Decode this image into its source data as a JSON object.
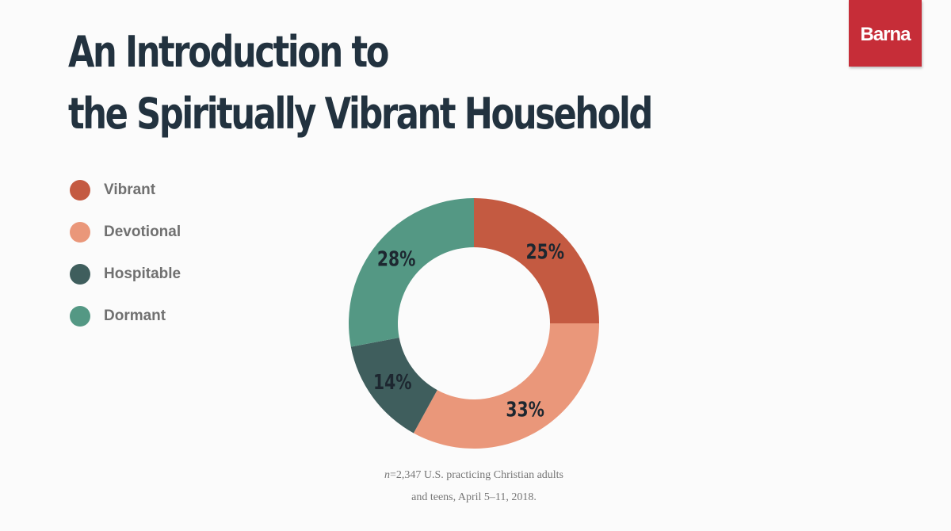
{
  "slide": {
    "title_line1": "An Introduction to",
    "title_line2": "the Spiritually Vibrant Household",
    "brand": "Barna",
    "footnote_n": "n",
    "footnote_line1": "=2,347 U.S. practicing Christian adults",
    "footnote_line2": "and teens, April 5–11, 2018."
  },
  "chart_data": {
    "type": "pie",
    "title": "",
    "donut": true,
    "legend_position": "left",
    "categories": [
      "Vibrant",
      "Devotional",
      "Hospitable",
      "Dormant"
    ],
    "values": [
      25,
      33,
      14,
      28
    ],
    "value_labels": [
      "25%",
      "33%",
      "14%",
      "28%"
    ],
    "colors": [
      "#c45a41",
      "#ea977a",
      "#3f5e5d",
      "#549884"
    ],
    "start_angle_deg": 0,
    "direction": "clockwise"
  }
}
